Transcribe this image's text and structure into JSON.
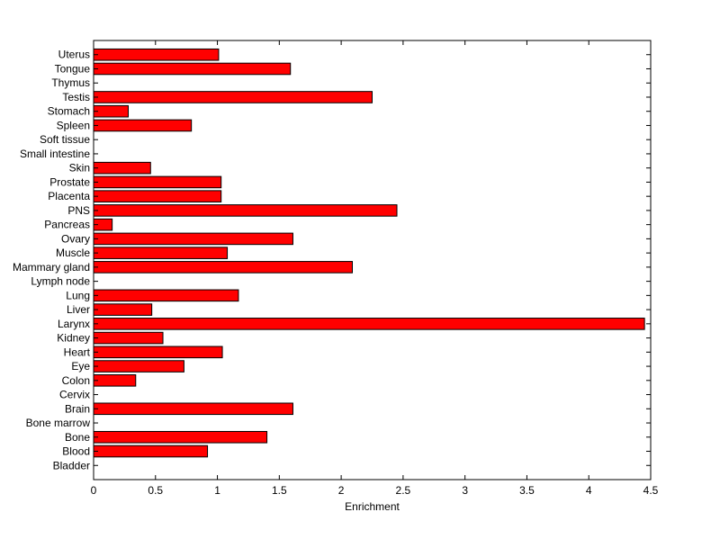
{
  "chart_data": {
    "type": "bar",
    "orientation": "horizontal",
    "xlabel": "Enrichment",
    "xlim": [
      0,
      4.5
    ],
    "xticks": [
      "0",
      "0.5",
      "1",
      "1.5",
      "2",
      "2.5",
      "3",
      "3.5",
      "4",
      "4.5"
    ],
    "bar_color": "#ff0000",
    "grid": false,
    "categories": [
      "Uterus",
      "Tongue",
      "Thymus",
      "Testis",
      "Stomach",
      "Spleen",
      "Soft tissue",
      "Small intestine",
      "Skin",
      "Prostate",
      "Placenta",
      "PNS",
      "Pancreas",
      "Ovary",
      "Muscle",
      "Mammary gland",
      "Lymph node",
      "Lung",
      "Liver",
      "Larynx",
      "Kidney",
      "Heart",
      "Eye",
      "Colon",
      "Cervix",
      "Brain",
      "Bone marrow",
      "Bone",
      "Blood",
      "Bladder"
    ],
    "values": [
      1.01,
      1.59,
      0,
      2.25,
      0.28,
      0.79,
      0,
      0,
      0.46,
      1.03,
      1.03,
      2.45,
      0.15,
      1.61,
      1.08,
      2.09,
      0,
      1.17,
      0.47,
      4.45,
      0.56,
      1.04,
      0.73,
      0.34,
      0,
      1.61,
      0,
      1.4,
      0.92,
      0
    ]
  }
}
